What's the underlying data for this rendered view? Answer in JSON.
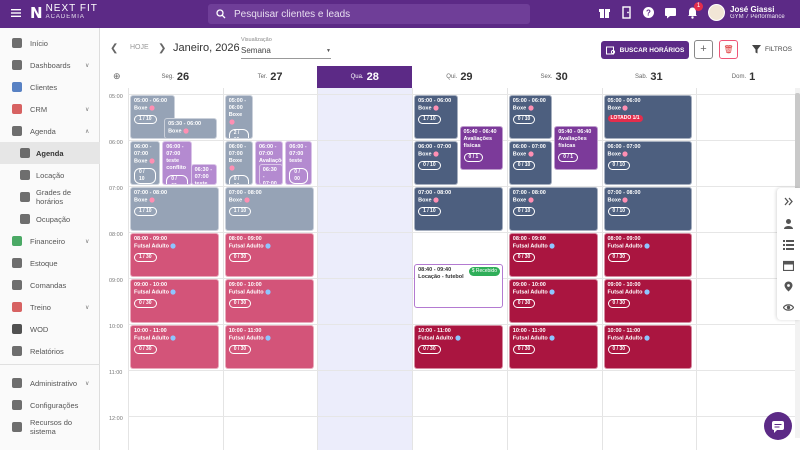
{
  "app": {
    "brand": "NEXT FIT",
    "brand_sub": "ACADEMIA"
  },
  "search": {
    "placeholder": "Pesquisar clientes e leads"
  },
  "topbar": {
    "notifications_count": "1"
  },
  "user": {
    "name": "José Giassi",
    "gym": "GYM 7 Performance"
  },
  "sidebar": {
    "items": [
      {
        "label": "Início",
        "icon": "home-icon"
      },
      {
        "label": "Dashboards",
        "icon": "chart-line-icon"
      },
      {
        "label": "Clientes",
        "icon": "people-icon"
      },
      {
        "label": "CRM",
        "icon": "funnel-icon"
      },
      {
        "label": "Agenda",
        "icon": "calendar-icon"
      },
      {
        "label": "Agenda",
        "icon": "calendar-check-icon"
      },
      {
        "label": "Locação",
        "icon": "key-icon"
      },
      {
        "label": "Grades de horários",
        "icon": "grid-icon"
      },
      {
        "label": "Ocupação",
        "icon": "occupancy-icon"
      },
      {
        "label": "Financeiro",
        "icon": "money-icon"
      },
      {
        "label": "Estoque",
        "icon": "cart-icon"
      },
      {
        "label": "Comandas",
        "icon": "receipt-icon"
      },
      {
        "label": "Treino",
        "icon": "dumbbell-icon"
      },
      {
        "label": "WOD",
        "icon": "kettlebell-icon"
      },
      {
        "label": "Relatórios",
        "icon": "report-icon"
      },
      {
        "label": "Administrativo",
        "icon": "admin-icon"
      },
      {
        "label": "Configurações",
        "icon": "gear-icon"
      },
      {
        "label": "Recursos do sistema",
        "icon": "toggle-icon"
      }
    ]
  },
  "header": {
    "today_label": "HOJE",
    "date_range": "Janeiro, 2026",
    "view_label": "Visualização",
    "view_value": "Semana",
    "search_schedules": "BUSCAR HORÁRIOS",
    "filters": "FILTROS"
  },
  "calendar": {
    "days": [
      {
        "abbr": "Seg.",
        "num": "26"
      },
      {
        "abbr": "Ter.",
        "num": "27"
      },
      {
        "abbr": "Qua.",
        "num": "28"
      },
      {
        "abbr": "Qui.",
        "num": "29"
      },
      {
        "abbr": "Sex.",
        "num": "30"
      },
      {
        "abbr": "Sab.",
        "num": "31"
      },
      {
        "abbr": "Dom.",
        "num": "1"
      }
    ],
    "hours": [
      "05:00",
      "06:00",
      "07:00",
      "08:00",
      "09:00",
      "10:00",
      "11:00",
      "12:00"
    ],
    "events": [
      {
        "day": 0,
        "start": "05:00",
        "end": "06:00",
        "name": "Boxe",
        "count": "1 / 10",
        "color": "gray",
        "hasicon": true
      },
      {
        "day": 0,
        "start": "05:30",
        "end": "06:00",
        "name": "Boxe",
        "count": "",
        "color": "gray",
        "hasicon": true
      },
      {
        "day": 0,
        "start": "06:00",
        "end": "07:00",
        "name": "Boxe",
        "count": "0 / 10",
        "color": "gray",
        "hasicon": true
      },
      {
        "day": 0,
        "start": "06:00",
        "end": "07:00",
        "name": "teste conflito",
        "count": "0 / 00",
        "color": "lpurp",
        "hasicon": false
      },
      {
        "day": 0,
        "start": "06:30",
        "end": "07:00",
        "name": "teste conflito",
        "count": "",
        "color": "lpurp",
        "hasicon": false
      },
      {
        "day": 0,
        "start": "07:00",
        "end": "08:00",
        "name": "Boxe",
        "count": "1 / 10",
        "color": "gray",
        "hasicon": true
      },
      {
        "day": 0,
        "start": "08:00",
        "end": "09:00",
        "name": "Futsal Adulto",
        "count": "1 / 30",
        "color": "pink",
        "hasicon": true
      },
      {
        "day": 0,
        "start": "09:00",
        "end": "10:00",
        "name": "Futsal Adulto",
        "count": "0 / 30",
        "color": "pink",
        "hasicon": true
      },
      {
        "day": 0,
        "start": "10:00",
        "end": "11:00",
        "name": "Futsal Adulto",
        "count": "0 / 30",
        "color": "pink",
        "hasicon": true
      },
      {
        "day": 1,
        "start": "05:00",
        "end": "06:00",
        "name": "Boxe",
        "count": "2 / 10",
        "color": "gray",
        "hasicon": true
      },
      {
        "day": 1,
        "start": "06:00",
        "end": "07:00",
        "name": "Boxe",
        "count": "0 / 10",
        "color": "gray",
        "hasicon": true
      },
      {
        "day": 1,
        "start": "06:00",
        "end": "07:00",
        "name": "Avaliações físicas",
        "count": "",
        "color": "lpurp",
        "hasicon": false
      },
      {
        "day": 1,
        "start": "06:00",
        "end": "07:00",
        "name": "teste",
        "count": "0 / 00",
        "color": "lpurp",
        "hasicon": false
      },
      {
        "day": 1,
        "start": "06:30",
        "end": "07:00",
        "name": "teste",
        "count": "",
        "color": "lpurp",
        "hasicon": false
      },
      {
        "day": 1,
        "start": "07:00",
        "end": "08:00",
        "name": "Boxe",
        "count": "1 / 10",
        "color": "gray",
        "hasicon": true
      },
      {
        "day": 1,
        "start": "08:00",
        "end": "09:00",
        "name": "Futsal Adulto",
        "count": "0 / 30",
        "color": "pink",
        "hasicon": true
      },
      {
        "day": 1,
        "start": "09:00",
        "end": "10:00",
        "name": "Futsal Adulto",
        "count": "0 / 30",
        "color": "pink",
        "hasicon": true
      },
      {
        "day": 1,
        "start": "10:00",
        "end": "11:00",
        "name": "Futsal Adulto",
        "count": "0 / 30",
        "color": "pink",
        "hasicon": true
      },
      {
        "day": 3,
        "start": "05:00",
        "end": "06:00",
        "name": "Boxe",
        "count": "1 / 10",
        "color": "navy",
        "hasicon": true
      },
      {
        "day": 3,
        "start": "05:40",
        "end": "06:40",
        "name": "Avaliações físicas",
        "count": "0 / 1",
        "color": "purp",
        "hasicon": false
      },
      {
        "day": 3,
        "start": "06:00",
        "end": "07:00",
        "name": "Boxe",
        "count": "0 / 10",
        "color": "navy",
        "hasicon": true
      },
      {
        "day": 3,
        "start": "07:00",
        "end": "08:00",
        "name": "Boxe",
        "count": "1 / 10",
        "color": "navy",
        "hasicon": true
      },
      {
        "day": 3,
        "start": "08:40",
        "end": "09:40",
        "name": "Locação - futebol",
        "count": "",
        "color": "white",
        "hasicon": false,
        "tag": "$ Recebido"
      },
      {
        "day": 3,
        "start": "10:00",
        "end": "11:00",
        "name": "Futsal Adulto",
        "count": "0 / 30",
        "color": "crim",
        "hasicon": true
      },
      {
        "day": 4,
        "start": "05:00",
        "end": "06:00",
        "name": "Boxe",
        "count": "0 / 10",
        "color": "navy",
        "hasicon": true
      },
      {
        "day": 4,
        "start": "05:40",
        "end": "06:40",
        "name": "Avaliações físicas",
        "count": "0 / 1",
        "color": "purp",
        "hasicon": false
      },
      {
        "day": 4,
        "start": "06:00",
        "end": "07:00",
        "name": "Boxe",
        "count": "0 / 10",
        "color": "navy",
        "hasicon": true
      },
      {
        "day": 4,
        "start": "07:00",
        "end": "08:00",
        "name": "Boxe",
        "count": "0 / 10",
        "color": "navy",
        "hasicon": true
      },
      {
        "day": 4,
        "start": "08:00",
        "end": "09:00",
        "name": "Futsal Adulto",
        "count": "0 / 30",
        "color": "crim",
        "hasicon": true
      },
      {
        "day": 4,
        "start": "09:00",
        "end": "10:00",
        "name": "Futsal Adulto",
        "count": "0 / 30",
        "color": "crim",
        "hasicon": true
      },
      {
        "day": 4,
        "start": "10:00",
        "end": "11:00",
        "name": "Futsal Adulto",
        "count": "0 / 30",
        "color": "crim",
        "hasicon": true
      },
      {
        "day": 5,
        "start": "05:00",
        "end": "06:00",
        "name": "Boxe",
        "count": "",
        "color": "navy",
        "hasicon": true,
        "lotado": "LOTADO 1/1"
      },
      {
        "day": 5,
        "start": "06:00",
        "end": "07:00",
        "name": "Boxe",
        "count": "0 / 10",
        "color": "navy",
        "hasicon": true
      },
      {
        "day": 5,
        "start": "07:00",
        "end": "08:00",
        "name": "Boxe",
        "count": "0 / 10",
        "color": "navy",
        "hasicon": true
      },
      {
        "day": 5,
        "start": "08:00",
        "end": "09:00",
        "name": "Futsal Adulto",
        "count": "0 / 30",
        "color": "crim",
        "hasicon": true
      },
      {
        "day": 5,
        "start": "09:00",
        "end": "10:00",
        "name": "Futsal Adulto",
        "count": "0 / 30",
        "color": "crim",
        "hasicon": true
      },
      {
        "day": 5,
        "start": "10:00",
        "end": "11:00",
        "name": "Futsal Adulto",
        "count": "0 / 30",
        "color": "crim",
        "hasicon": true
      }
    ]
  },
  "colors": {
    "brand": "#5c2a86",
    "navy": "#4d5f7f",
    "gray": "#96a3b6",
    "pink": "#d35479",
    "crimson": "#aa1540",
    "purple": "#7c3a9a",
    "light_purple": "#b48ad0",
    "today_bg": "#ecedfb"
  }
}
